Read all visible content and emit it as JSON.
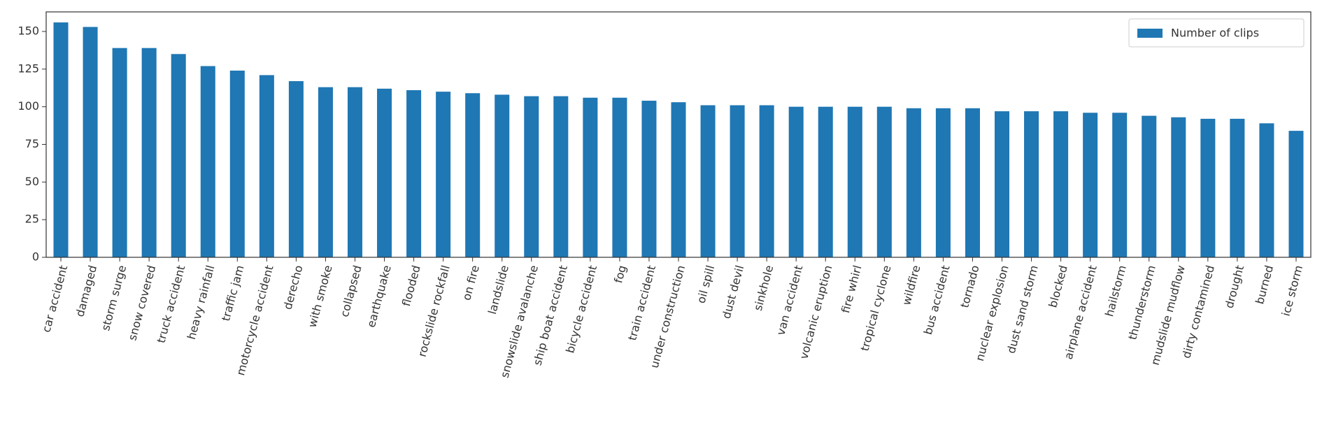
{
  "chart_data": {
    "type": "bar",
    "categories": [
      "car accident",
      "damaged",
      "storm surge",
      "snow covered",
      "truck accident",
      "heavy rainfall",
      "traffic jam",
      "motorcycle accident",
      "derecho",
      "with smoke",
      "collapsed",
      "earthquake",
      "flooded",
      "rockslide rockfall",
      "on fire",
      "landslide",
      "snowslide avalanche",
      "ship boat accident",
      "bicycle accident",
      "fog",
      "train accident",
      "under construction",
      "oil spill",
      "dust devil",
      "sinkhole",
      "van accident",
      "volcanic eruption",
      "fire whirl",
      "tropical cyclone",
      "wildfire",
      "bus accident",
      "tornado",
      "nuclear explosion",
      "dust sand storm",
      "blocked",
      "airplane accident",
      "hailstorm",
      "thunderstorm",
      "mudslide mudflow",
      "dirty contamined",
      "drought",
      "burned",
      "ice storm"
    ],
    "series": [
      {
        "name": "Number of clips",
        "color": "#1f77b4",
        "values": [
          156,
          153,
          139,
          139,
          135,
          127,
          124,
          121,
          117,
          113,
          113,
          112,
          111,
          110,
          109,
          108,
          107,
          107,
          106,
          106,
          104,
          103,
          101,
          101,
          101,
          100,
          100,
          100,
          100,
          99,
          99,
          99,
          97,
          97,
          97,
          96,
          96,
          94,
          93,
          92,
          92,
          89,
          84
        ]
      }
    ],
    "ylim": [
      0,
      163
    ],
    "yticks": [
      0,
      25,
      50,
      75,
      100,
      125,
      150
    ],
    "legend": "upper right"
  }
}
